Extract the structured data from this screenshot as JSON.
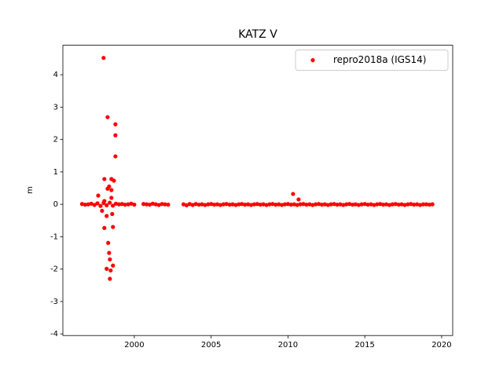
{
  "chart_data": {
    "type": "scatter",
    "title": "KATZ V",
    "y_label": "m",
    "series": [
      {
        "name": "repro2018a (IGS14)",
        "color": "#ff0000",
        "x": [
          1996.6,
          1996.8,
          1997.0,
          1997.2,
          1997.4,
          1997.6,
          1997.8,
          1998.0,
          1998.2,
          1998.4,
          1998.6,
          1998.8,
          1999.0,
          1999.2,
          1999.4,
          1999.6,
          1999.8,
          2000.0,
          2000.6,
          2000.8,
          2001.0,
          2001.2,
          2001.4,
          2001.6,
          2001.8,
          2002.0,
          2002.2,
          2003.2,
          2003.4,
          2003.6,
          2003.8,
          2004.0,
          2004.2,
          2004.4,
          2004.6,
          2004.8,
          2005.0,
          2005.2,
          2005.4,
          2005.6,
          2005.8,
          2006.0,
          2006.2,
          2006.4,
          2006.6,
          2006.8,
          2007.0,
          2007.2,
          2007.4,
          2007.6,
          2007.8,
          2008.0,
          2008.2,
          2008.4,
          2008.6,
          2008.8,
          2009.0,
          2009.2,
          2009.4,
          2009.6,
          2009.8,
          2010.0,
          2010.2,
          2010.4,
          2010.6,
          2010.8,
          2011.0,
          2011.2,
          2011.4,
          2011.6,
          2011.8,
          2012.0,
          2012.2,
          2012.4,
          2012.6,
          2012.8,
          2013.0,
          2013.2,
          2013.4,
          2013.6,
          2013.8,
          2014.0,
          2014.2,
          2014.4,
          2014.6,
          2014.8,
          2015.0,
          2015.2,
          2015.4,
          2015.6,
          2015.8,
          2016.0,
          2016.2,
          2016.4,
          2016.6,
          2016.8,
          2017.0,
          2017.2,
          2017.4,
          2017.6,
          2017.8,
          2018.0,
          2018.2,
          2018.4,
          2018.6,
          2018.8,
          2019.0,
          2019.2,
          2019.4,
          1998.0,
          1998.26,
          1998.77,
          1998.77,
          1998.77,
          1998.05,
          1998.51,
          1998.67,
          1998.26,
          1998.51,
          1997.65,
          1998.36,
          1998.05,
          1998.51,
          1998.56,
          1998.05,
          1998.61,
          1998.2,
          1998.3,
          1998.36,
          1998.41,
          1998.61,
          1998.2,
          1998.46,
          1997.9,
          1998.41,
          2010.33,
          2010.69
        ],
        "values": [
          0.01,
          -0.01,
          0,
          0.02,
          -0.02,
          0.03,
          -0.05,
          0.04,
          -0.03,
          0.05,
          -0.04,
          0.02,
          0,
          0.01,
          -0.01,
          0,
          0.02,
          -0.01,
          0.01,
          0,
          -0.01,
          0.02,
          0,
          -0.02,
          0.01,
          0,
          -0.01,
          0,
          -0.03,
          0.01,
          -0.02,
          0.01,
          -0.01,
          0,
          -0.02,
          0,
          0.01,
          -0.01,
          0,
          -0.02,
          0,
          0.01,
          -0.01,
          0,
          -0.02,
          0,
          0.01,
          -0.01,
          0,
          -0.02,
          0,
          0.01,
          -0.01,
          0,
          -0.02,
          0,
          0.01,
          -0.01,
          0,
          -0.02,
          0,
          0.01,
          -0.01,
          0,
          -0.02,
          0,
          0.01,
          -0.01,
          0,
          -0.02,
          0,
          0.01,
          -0.01,
          0,
          -0.02,
          0,
          0.01,
          -0.01,
          0,
          -0.02,
          0,
          0.01,
          -0.01,
          0,
          -0.02,
          0,
          0.01,
          -0.01,
          0,
          -0.02,
          0,
          0.01,
          -0.01,
          0,
          -0.02,
          0,
          0.01,
          -0.01,
          0,
          -0.02,
          0,
          0.01,
          -0.01,
          0,
          -0.02,
          0,
          0,
          -0.01,
          0,
          4.52,
          2.69,
          2.47,
          2.13,
          1.48,
          0.78,
          0.78,
          0.73,
          0.48,
          0.44,
          0.27,
          0.55,
          0.1,
          0.2,
          -0.3,
          -0.73,
          -0.7,
          -0.36,
          -1.19,
          -1.5,
          -1.7,
          -1.89,
          -1.99,
          -2.04,
          -0.2,
          -2.3,
          0.32,
          0.15
        ]
      }
    ],
    "xlim": [
      1995.35,
      2020.72
    ],
    "ylim": [
      -4.05,
      4.91
    ],
    "xticks": [
      2000,
      2005,
      2010,
      2015,
      2020
    ],
    "yticks": [
      -4,
      -3,
      -2,
      -1,
      0,
      1,
      2,
      3,
      4
    ],
    "legend": "upper right"
  }
}
